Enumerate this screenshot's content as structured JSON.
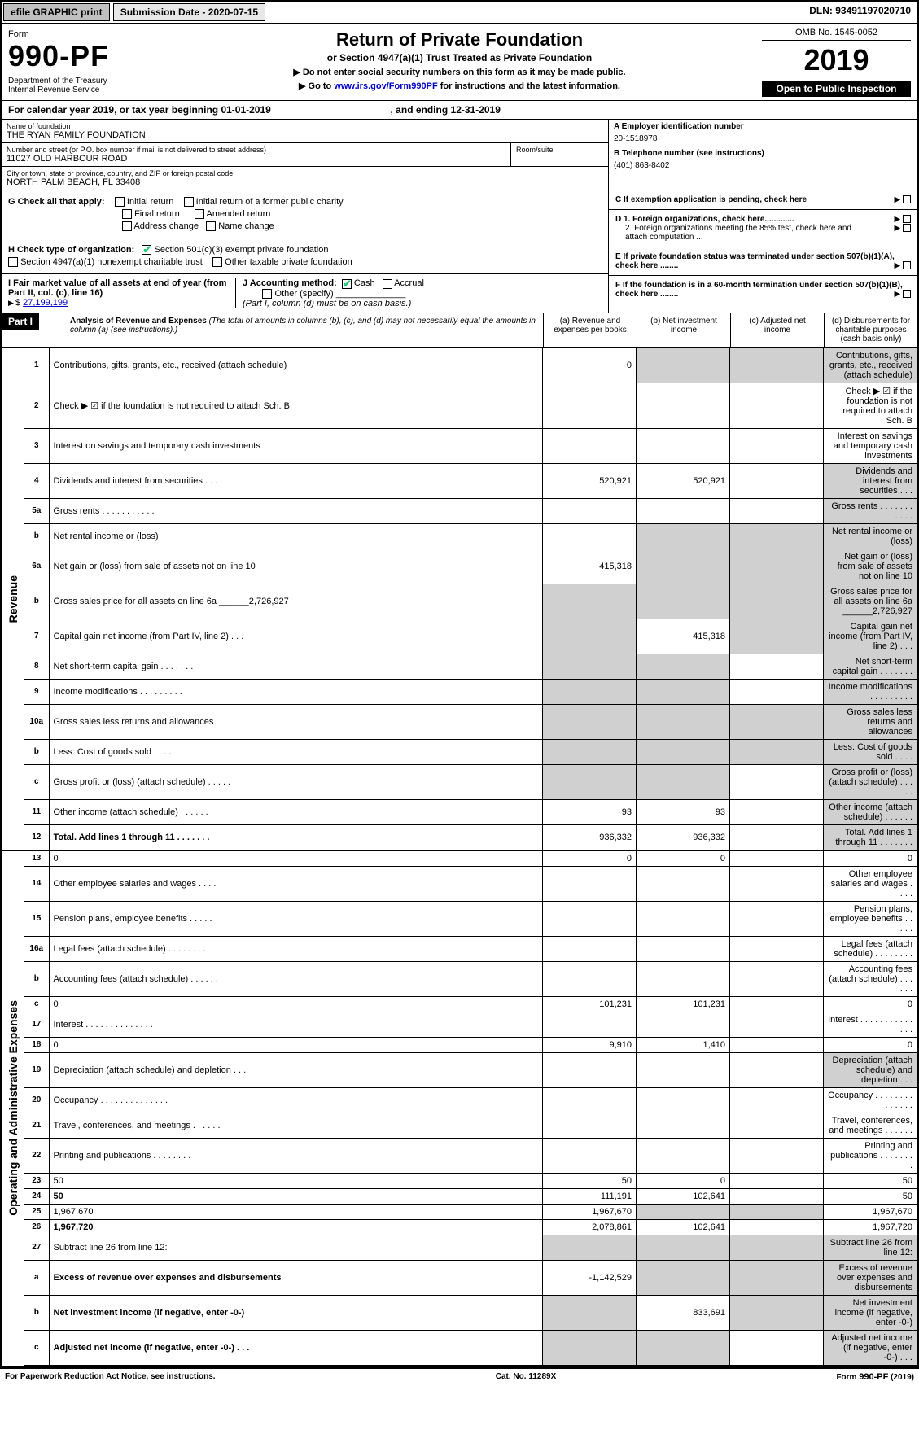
{
  "topbar": {
    "efile": "efile GRAPHIC print",
    "submission": "Submission Date - 2020-07-15",
    "dln_label": "DLN: 93491197020710"
  },
  "header": {
    "form": "Form",
    "formno": "990-PF",
    "dept": "Department of the Treasury\nInternal Revenue Service",
    "title": "Return of Private Foundation",
    "subtitle": "or Section 4947(a)(1) Trust Treated as Private Foundation",
    "notice1": "▶ Do not enter social security numbers on this form as it may be made public.",
    "notice2_pre": "▶ Go to ",
    "notice2_link": "www.irs.gov/Form990PF",
    "notice2_post": " for instructions and the latest information.",
    "omb": "OMB No. 1545-0052",
    "year": "2019",
    "otp": "Open to Public Inspection"
  },
  "calendar": {
    "text_a": "For calendar year 2019, or tax year beginning 01-01-2019",
    "text_b": ", and ending 12-31-2019"
  },
  "foundation": {
    "name_lbl": "Name of foundation",
    "name": "THE RYAN FAMILY FOUNDATION",
    "addr_lbl": "Number and street (or P.O. box number if mail is not delivered to street address)",
    "addr": "11027 OLD HARBOUR ROAD",
    "room_lbl": "Room/suite",
    "city_lbl": "City or town, state or province, country, and ZIP or foreign postal code",
    "city": "NORTH PALM BEACH, FL  33408"
  },
  "empinfo": {
    "ein_lbl": "A Employer identification number",
    "ein": "20-1518978",
    "phone_lbl": "B Telephone number (see instructions)",
    "phone": "(401) 863-8402",
    "c_text": "C  If exemption application is pending, check here",
    "d1": "D 1. Foreign organizations, check here.............",
    "d2": "2. Foreign organizations meeting the 85% test, check here and attach computation ...",
    "e": "E  If private foundation status was terminated under section 507(b)(1)(A), check here ........",
    "f": "F  If the foundation is in a 60-month termination under section 507(b)(1)(B), check here ........"
  },
  "checks": {
    "g_lbl": "G Check all that apply:",
    "g1": "Initial return",
    "g2": "Initial return of a former public charity",
    "g3": "Final return",
    "g4": "Amended return",
    "g5": "Address change",
    "g6": "Name change",
    "h_lbl": "H Check type of organization:",
    "h1": "Section 501(c)(3) exempt private foundation",
    "h2": "Section 4947(a)(1) nonexempt charitable trust",
    "h3": "Other taxable private foundation",
    "i_lbl": "I Fair market value of all assets at end of year (from Part II, col. (c), line 16)",
    "i_val": "27,199,199",
    "j_lbl": "J Accounting method:",
    "j1": "Cash",
    "j2": "Accrual",
    "j3": "Other (specify)",
    "j_note": "(Part I, column (d) must be on cash basis.)"
  },
  "part1": {
    "title": "Part I",
    "desc_title": "Analysis of Revenue and Expenses",
    "desc": "(The total of amounts in columns (b), (c), and (d) may not necessarily equal the amounts in column (a) (see instructions).)",
    "col_a": "(a)   Revenue and expenses per books",
    "col_b": "(b)  Net investment income",
    "col_c": "(c)  Adjusted net income",
    "col_d": "(d)  Disbursements for charitable purposes (cash basis only)"
  },
  "section_labels": {
    "revenue": "Revenue",
    "opex": "Operating and Administrative Expenses"
  },
  "revenue_rows": [
    {
      "n": "1",
      "d": "Contributions, gifts, grants, etc., received (attach schedule)",
      "a": "0",
      "b_shade": true,
      "c_shade": true,
      "d_shade": true
    },
    {
      "n": "2",
      "d": "Check ▶ ☑ if the foundation is not required to attach Sch. B",
      "a_shade": false,
      "merge": true
    },
    {
      "n": "3",
      "d": "Interest on savings and temporary cash investments"
    },
    {
      "n": "4",
      "d": "Dividends and interest from securities   .  .  .",
      "a": "520,921",
      "b": "520,921",
      "d_shade": true
    },
    {
      "n": "5a",
      "d": "Gross rents   .   .   .   .   .   .   .   .   .   .   .",
      "d_shade": true
    },
    {
      "n": "b",
      "d": "Net rental income or (loss)  ",
      "b_shade": true,
      "c_shade": true,
      "d_shade": true
    },
    {
      "n": "6a",
      "d": "Net gain or (loss) from sale of assets not on line 10",
      "a": "415,318",
      "b_shade": true,
      "c_shade": true,
      "d_shade": true
    },
    {
      "n": "b",
      "d": "Gross sales price for all assets on line 6a ______2,726,927",
      "a_shade": true,
      "b_shade": true,
      "c_shade": true,
      "d_shade": true
    },
    {
      "n": "7",
      "d": "Capital gain net income (from Part IV, line 2)   .  .  .",
      "a_shade": true,
      "b": "415,318",
      "c_shade": true,
      "d_shade": true
    },
    {
      "n": "8",
      "d": "Net short-term capital gain   .   .   .   .   .   .   .",
      "a_shade": true,
      "b_shade": true,
      "d_shade": true
    },
    {
      "n": "9",
      "d": "Income modifications  .   .   .   .   .   .   .   .   .",
      "a_shade": true,
      "b_shade": true,
      "d_shade": true
    },
    {
      "n": "10a",
      "d": "Gross sales less returns and allowances",
      "a_shade": true,
      "b_shade": true,
      "c_shade": true,
      "d_shade": true
    },
    {
      "n": "b",
      "d": "Less: Cost of goods sold   .   .   .   .",
      "a_shade": true,
      "b_shade": true,
      "c_shade": true,
      "d_shade": true
    },
    {
      "n": "c",
      "d": "Gross profit or (loss) (attach schedule)   .   .   .   .   .",
      "a_shade": true,
      "b_shade": true,
      "d_shade": true
    },
    {
      "n": "11",
      "d": "Other income (attach schedule)   .   .   .   .   .   .",
      "a": "93",
      "b": "93",
      "d_shade": true
    },
    {
      "n": "12",
      "d": "Total. Add lines 1 through 11   .   .   .   .   .   .   .",
      "bold": true,
      "a": "936,332",
      "b": "936,332",
      "d_shade": true
    }
  ],
  "opex_rows": [
    {
      "n": "13",
      "d": "0",
      "a": "0",
      "b": "0"
    },
    {
      "n": "14",
      "d": "Other employee salaries and wages   .   .   .   ."
    },
    {
      "n": "15",
      "d": "Pension plans, employee benefits   .   .   .   .   ."
    },
    {
      "n": "16a",
      "d": "Legal fees (attach schedule)  .   .   .   .   .   .   .   ."
    },
    {
      "n": "b",
      "d": "Accounting fees (attach schedule)    .   .   .   .   .   ."
    },
    {
      "n": "c",
      "d": "0",
      "a": "101,231",
      "b": "101,231"
    },
    {
      "n": "17",
      "d": "Interest   .   .   .   .   .   .   .   .   .   .   .   .   .   ."
    },
    {
      "n": "18",
      "d": "0",
      "a": "9,910",
      "b": "1,410"
    },
    {
      "n": "19",
      "d": "Depreciation (attach schedule) and depletion   .   .   .",
      "d_shade": true
    },
    {
      "n": "20",
      "d": "Occupancy  .   .   .   .   .   .   .   .   .   .   .   .   .   ."
    },
    {
      "n": "21",
      "d": "Travel, conferences, and meetings   .   .   .   .   .   ."
    },
    {
      "n": "22",
      "d": "Printing and publications  .   .   .   .   .   .   .   ."
    },
    {
      "n": "23",
      "d": "50",
      "a": "50",
      "b": "0"
    },
    {
      "n": "24",
      "d": "50",
      "bold": true,
      "a": "111,191",
      "b": "102,641"
    },
    {
      "n": "25",
      "d": "1,967,670",
      "a": "1,967,670",
      "b_shade": true,
      "c_shade": true
    },
    {
      "n": "26",
      "d": "1,967,720",
      "bold": true,
      "a": "2,078,861",
      "b": "102,641"
    },
    {
      "n": "27",
      "d": "Subtract line 26 from line 12:",
      "a_shade": true,
      "b_shade": true,
      "c_shade": true,
      "d_shade": true
    },
    {
      "n": "a",
      "d": "Excess of revenue over expenses and disbursements",
      "bold": true,
      "a": "-1,142,529",
      "b_shade": true,
      "c_shade": true,
      "d_shade": true
    },
    {
      "n": "b",
      "d": "Net investment income (if negative, enter -0-)",
      "bold": true,
      "a_shade": true,
      "b": "833,691",
      "c_shade": true,
      "d_shade": true
    },
    {
      "n": "c",
      "d": "Adjusted net income (if negative, enter -0-)   .  .  .",
      "bold": true,
      "a_shade": true,
      "b_shade": true,
      "d_shade": true
    }
  ],
  "footer": {
    "left": "For Paperwork Reduction Act Notice, see instructions.",
    "center": "Cat. No. 11289X",
    "right": "Form 990-PF (2019)"
  },
  "colors": {
    "shade": "#d0d0d0",
    "black": "#000000",
    "link": "#0000cc",
    "check": "#22bb55"
  }
}
